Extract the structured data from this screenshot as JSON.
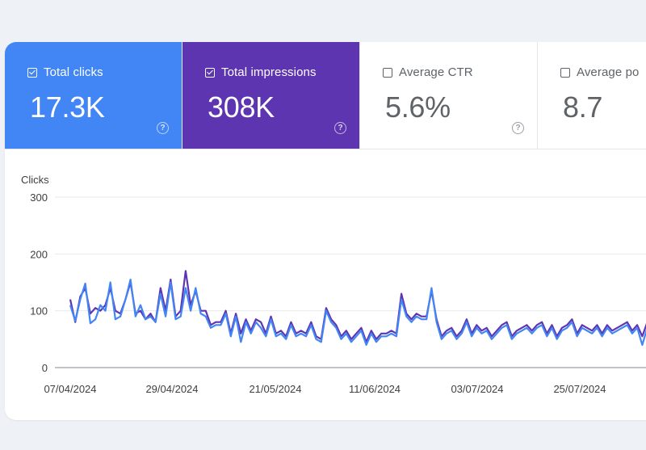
{
  "metrics": [
    {
      "label": "Total clicks",
      "value": "17.3K",
      "checked": true,
      "color": "#4285f4"
    },
    {
      "label": "Total impressions",
      "value": "308K",
      "checked": true,
      "color": "#5e35b1"
    },
    {
      "label": "Average CTR",
      "value": "5.6%",
      "checked": false,
      "color": "#ffffff"
    },
    {
      "label": "Average po",
      "value": "8.7",
      "checked": false,
      "color": "#ffffff"
    }
  ],
  "help_icon": "?",
  "chart_data": {
    "type": "line",
    "ylabel": "Clicks",
    "ylim": [
      0,
      300
    ],
    "yticks": [
      0,
      100,
      200,
      300
    ],
    "xticks": [
      "07/04/2024",
      "29/04/2024",
      "21/05/2024",
      "11/06/2024",
      "03/07/2024",
      "25/07/2024"
    ],
    "grid": true,
    "series": [
      {
        "color": "#4285f4",
        "values": [
          110,
          82,
          120,
          148,
          78,
          85,
          110,
          100,
          150,
          85,
          90,
          120,
          155,
          90,
          110,
          85,
          90,
          80,
          130,
          90,
          150,
          85,
          90,
          140,
          100,
          140,
          95,
          90,
          70,
          75,
          75,
          95,
          55,
          90,
          45,
          80,
          60,
          80,
          70,
          55,
          85,
          55,
          60,
          50,
          75,
          55,
          60,
          55,
          75,
          50,
          45,
          100,
          80,
          70,
          50,
          60,
          45,
          55,
          65,
          40,
          60,
          45,
          55,
          55,
          60,
          55,
          120,
          90,
          80,
          90,
          85,
          85,
          140,
          80,
          50,
          60,
          65,
          50,
          60,
          80,
          55,
          70,
          60,
          65,
          50,
          60,
          70,
          75,
          50,
          60,
          65,
          70,
          60,
          70,
          75,
          55,
          70,
          50,
          65,
          70,
          80,
          55,
          70,
          65,
          60,
          70,
          55,
          70,
          60,
          65,
          70,
          75,
          60,
          70,
          40,
          70,
          55,
          60
        ]
      },
      {
        "color": "#5e35b1",
        "values": [
          120,
          80,
          125,
          140,
          95,
          105,
          100,
          110,
          140,
          100,
          95,
          120,
          150,
          95,
          100,
          85,
          95,
          80,
          140,
          100,
          155,
          90,
          100,
          170,
          110,
          135,
          100,
          100,
          75,
          80,
          80,
          100,
          60,
          95,
          60,
          85,
          65,
          85,
          80,
          60,
          90,
          60,
          65,
          55,
          80,
          60,
          65,
          60,
          80,
          55,
          50,
          105,
          85,
          75,
          55,
          65,
          50,
          60,
          70,
          45,
          65,
          50,
          60,
          60,
          65,
          60,
          130,
          95,
          85,
          95,
          90,
          90,
          135,
          85,
          55,
          65,
          70,
          55,
          65,
          85,
          60,
          75,
          65,
          70,
          55,
          65,
          75,
          80,
          55,
          65,
          70,
          75,
          65,
          75,
          80,
          60,
          75,
          55,
          70,
          75,
          85,
          60,
          75,
          70,
          65,
          75,
          60,
          75,
          65,
          70,
          75,
          80,
          65,
          75,
          55,
          80,
          65,
          70
        ]
      }
    ]
  }
}
